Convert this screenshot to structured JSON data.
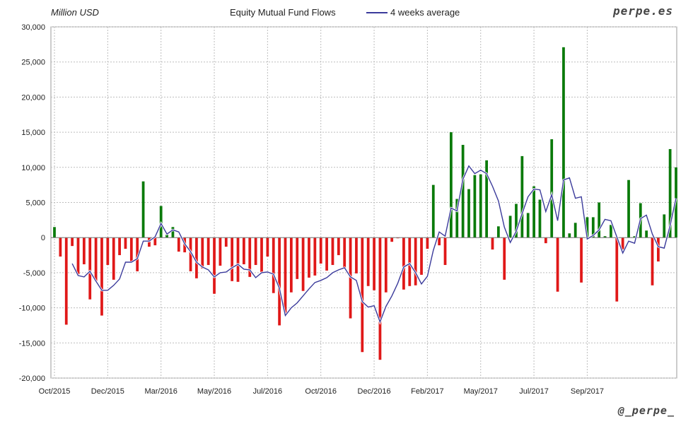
{
  "header": {
    "unit_label": "Million USD",
    "title": "Equity Mutual Fund Flows",
    "legend_label": "4 weeks average",
    "brand": "perpe.es",
    "handle": "@_perpe_"
  },
  "colors": {
    "positive": "#0a7a0a",
    "negative": "#e01818",
    "average_line": "#3b3b9b",
    "grid": "#bdbdbd"
  },
  "chart_data": {
    "type": "bar",
    "title": "Equity Mutual Fund Flows",
    "ylabel": "Million USD",
    "ylim": [
      -20000,
      30000
    ],
    "yticks": [
      -20000,
      -15000,
      -10000,
      -5000,
      0,
      5000,
      10000,
      15000,
      20000,
      25000,
      30000
    ],
    "ytick_labels": [
      "-20,000",
      "-15,000",
      "-10,000",
      "-5,000",
      "0",
      "5,000",
      "10,000",
      "15,000",
      "20,000",
      "25,000",
      "30,000"
    ],
    "xtick_labels": [
      "Oct/2015",
      "Dec/2015",
      "Mar/2016",
      "May/2016",
      "Jul/2016",
      "Oct/2016",
      "Dec/2016",
      "Feb/2017",
      "May/2017",
      "Jul/2017",
      "Sep/2017"
    ],
    "xtick_week_index": [
      0,
      9,
      18,
      27,
      36,
      45,
      54,
      63,
      72,
      81,
      90
    ],
    "grid": true,
    "series": [
      {
        "name": "Equity Mutual Fund Flows",
        "kind": "bar",
        "values": [
          1500,
          -2700,
          -12400,
          -1200,
          -5200,
          -3800,
          -8800,
          -6200,
          -11100,
          -3900,
          -6000,
          -2500,
          -1600,
          -3500,
          -4800,
          8000,
          -1300,
          -1100,
          4500,
          400,
          1500,
          -2000,
          -2100,
          -4800,
          -5800,
          -4400,
          -3900,
          -8000,
          -4000,
          -1300,
          -6200,
          -6300,
          -3800,
          -5600,
          -3900,
          -4900,
          -2700,
          -7900,
          -12500,
          -11000,
          -7800,
          -5900,
          -7600,
          -5700,
          -5400,
          -3700,
          -4700,
          -3900,
          -2500,
          -4400,
          -11500,
          -5100,
          -16300,
          -6900,
          -7500,
          -17400,
          -7800,
          -600,
          -100,
          -7400,
          -6900,
          -6800,
          -5300,
          -1600,
          7500,
          -1100,
          -3900,
          15000,
          5500,
          13200,
          6900,
          8900,
          9000,
          11000,
          -1700,
          1600,
          -6000,
          3100,
          4800,
          11600,
          3500,
          7300,
          5400,
          -800,
          14000,
          -7700,
          27100,
          600,
          2100,
          -6400,
          2900,
          2900,
          5000,
          200,
          1800,
          -9100,
          -1700,
          8200,
          200,
          4900,
          1000,
          -6800,
          -3400,
          3300,
          12600,
          10000
        ]
      },
      {
        "name": "4 weeks average",
        "kind": "line",
        "values": [
          null,
          null,
          null,
          -3700,
          -5400,
          -5600,
          -4800,
          -6200,
          -7500,
          -7500,
          -6800,
          -5900,
          -3500,
          -3500,
          -3000,
          -500,
          -500,
          100,
          2000,
          500,
          1100,
          800,
          -900,
          -2000,
          -3500,
          -4200,
          -4600,
          -5600,
          -5000,
          -4900,
          -4300,
          -3800,
          -4500,
          -4600,
          -5700,
          -5000,
          -4900,
          -5200,
          -7200,
          -11100,
          -10000,
          -9300,
          -8300,
          -7300,
          -6400,
          -6100,
          -5700,
          -5000,
          -4600,
          -4300,
          -5600,
          -6100,
          -9100,
          -9900,
          -9700,
          -12000,
          -9800,
          -8300,
          -6500,
          -4200,
          -3700,
          -5000,
          -6600,
          -5500,
          -1800,
          800,
          200,
          4200,
          3800,
          8300,
          10200,
          9100,
          9600,
          9100,
          7300,
          5200,
          1500,
          -700,
          900,
          3400,
          5800,
          6900,
          6800,
          3700,
          6100,
          2400,
          8200,
          8500,
          5600,
          5800,
          -200,
          300,
          1100,
          2600,
          2400,
          100,
          -2200,
          -500,
          -800,
          2700,
          3200,
          500,
          -1300,
          -1500,
          1700,
          5600
        ]
      }
    ]
  }
}
